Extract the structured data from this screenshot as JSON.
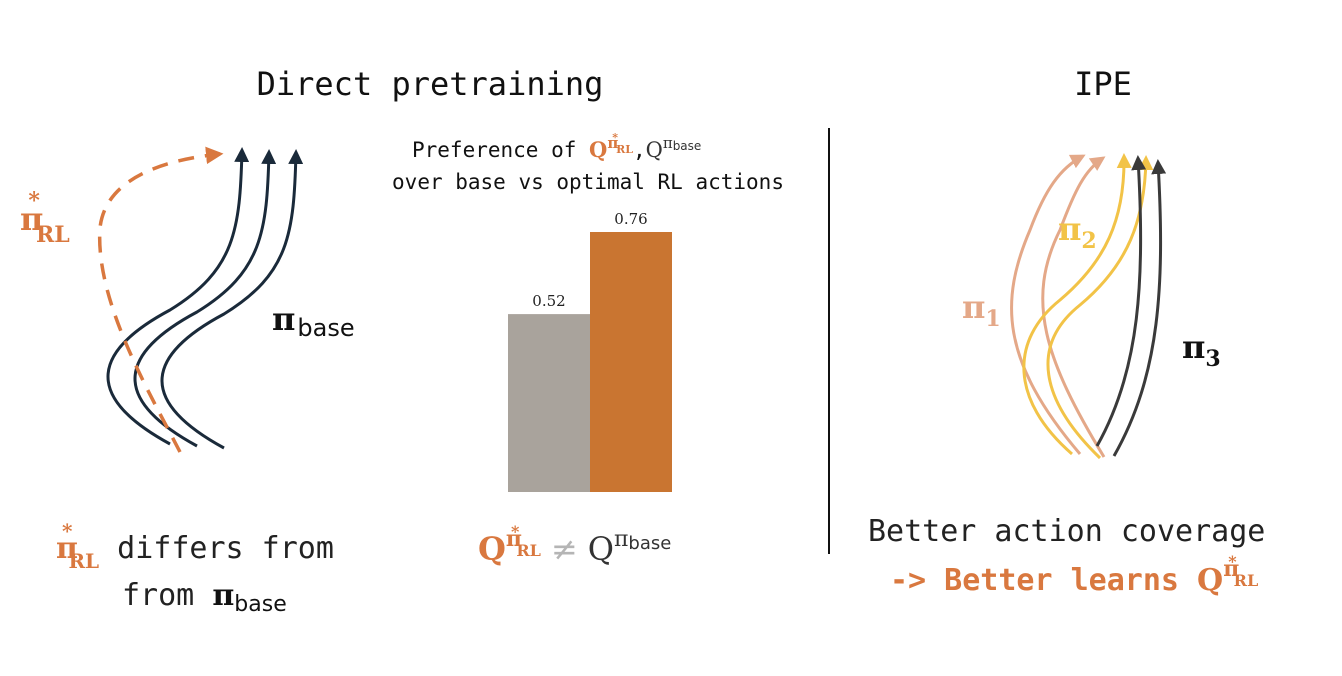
{
  "left": {
    "title": "Direct pretraining",
    "pi_rl": {
      "symbol": "π",
      "sup": "*",
      "sub": "RL"
    },
    "pi_base": {
      "symbol": "π",
      "sub": "base"
    },
    "caption_line1_suffix": " differs from",
    "caption_line2_prefix": "from "
  },
  "middle": {
    "title_line1_prefix": "Preference of ",
    "title_comma": ",",
    "title_line2": "over base vs optimal RL actions",
    "q_letter": "Q",
    "neq": "≠"
  },
  "right": {
    "title": "IPE",
    "pi1": {
      "symbol": "π",
      "sub": "1"
    },
    "pi2": {
      "symbol": "π",
      "sub": "2"
    },
    "pi3": {
      "symbol": "π",
      "sub": "3"
    },
    "caption_line1": "Better action coverage",
    "caption_line2_prefix": "-> Better learns "
  },
  "colors": {
    "navy": "#1a2a3a",
    "orange": "#d9783f",
    "bar_orange": "#c97531",
    "bar_gray": "#a9a39c",
    "peach": "#e4a888",
    "yellow": "#f2c347",
    "dark_gray": "#3a3a3a",
    "neq_gray": "#b5b5b5"
  },
  "chart_data": {
    "type": "bar",
    "categories": [
      "",
      ""
    ],
    "values": [
      0.52,
      0.76
    ],
    "data_labels": [
      "0.52",
      "0.76"
    ],
    "bar_colors": [
      "#a9a39c",
      "#c97531"
    ],
    "ylim": [
      0,
      0.76
    ],
    "grid": false
  }
}
